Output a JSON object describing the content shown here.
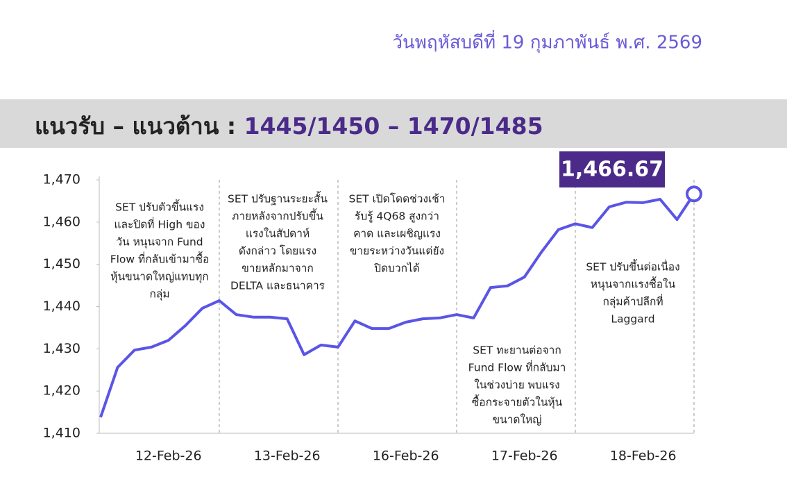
{
  "date_text": "วันพฤหัสบดีที่ 19 กุมภาพันธ์ พ.ศ. 2569",
  "heading": {
    "label": "แนวรับ – แนวต้าน : ",
    "levels": "1445/1450 – 1470/1485"
  },
  "chart_data": {
    "type": "line",
    "categories": [
      null,
      null,
      null,
      null,
      "12-Feb-26",
      null,
      null,
      null,
      null,
      null,
      null,
      "13-Feb-26",
      null,
      null,
      null,
      null,
      null,
      null,
      "16-Feb-26",
      null,
      null,
      null,
      null,
      null,
      null,
      "17-Feb-26",
      null,
      null,
      null,
      null,
      null,
      null,
      "18-Feb-26",
      null,
      null,
      null
    ],
    "series": [
      {
        "name": "SET",
        "color": "#5a55e6",
        "values": [
          1413.8,
          1425.6,
          1429.7,
          1430.4,
          1432.0,
          1435.5,
          1439.6,
          1441.4,
          1438.1,
          1437.5,
          1437.5,
          1437.1,
          1428.6,
          1430.9,
          1430.4,
          1436.6,
          1434.8,
          1434.8,
          1436.3,
          1437.1,
          1437.3,
          1438.1,
          1437.3,
          1444.5,
          1444.9,
          1447.0,
          1452.9,
          1458.2,
          1459.6,
          1458.7,
          1463.6,
          1464.7,
          1464.6,
          1465.4,
          1460.6,
          1466.67
        ],
        "value_labels": [
          null,
          null,
          null,
          null,
          null,
          null,
          null,
          null,
          null,
          null,
          null,
          null,
          null,
          null,
          null,
          null,
          null,
          null,
          null,
          null,
          null,
          null,
          null,
          null,
          null,
          null,
          null,
          null,
          null,
          null,
          null,
          null,
          null,
          null,
          null,
          "1,466.67"
        ]
      }
    ],
    "ylim": [
      1410,
      1470
    ],
    "yticks": [
      {
        "value": 1410,
        "label": "1,410"
      },
      {
        "value": 1420,
        "label": "1,420"
      },
      {
        "value": 1430,
        "label": "1,430"
      },
      {
        "value": 1440,
        "label": "1,440"
      },
      {
        "value": 1450,
        "label": "1,450"
      },
      {
        "value": 1460,
        "label": "1,460"
      },
      {
        "value": 1470,
        "label": "1,470"
      }
    ],
    "annotations": [
      {
        "lines": [
          "SET ปรับตัวขึ้นแรง",
          "และปิดที่ High ของ",
          "วัน หนุนจาก Fund",
          "Flow ที่กลับเข้ามาซื้อ",
          "หุ้นขนาดใหญ่แทบทุก",
          "กลุ่ม"
        ]
      },
      {
        "lines": [
          "SET ปรับฐานระยะสั้น",
          "ภายหลังจากปรับขึ้น",
          "แรงในสัปดาห์",
          "ดังกล่าว โดยแรง",
          "ขายหลักมาจาก",
          "DELTA และธนาคาร"
        ]
      },
      {
        "lines": [
          "SET เปิดโดดช่วงเช้า",
          "รับรู้ 4Q68 สูงกว่า",
          "คาด และเผชิญแรง",
          "ขายระหว่างวันแต่ยัง",
          "ปิดบวกได้"
        ]
      },
      {
        "lines": [
          "SET ทะยานต่อจาก",
          "Fund Flow ที่กลับมา",
          "ในช่วงบ่าย พบแรง",
          "ซื้อกระจายตัวในหุ้น",
          "ขนาดใหญ่"
        ]
      },
      {
        "lines": [
          "SET ปรับขึ้นต่อเนื่อง",
          "หนุนจากแรงซื้อใน",
          "กลุ่มค้าปลีกที่",
          "Laggard"
        ]
      }
    ]
  }
}
